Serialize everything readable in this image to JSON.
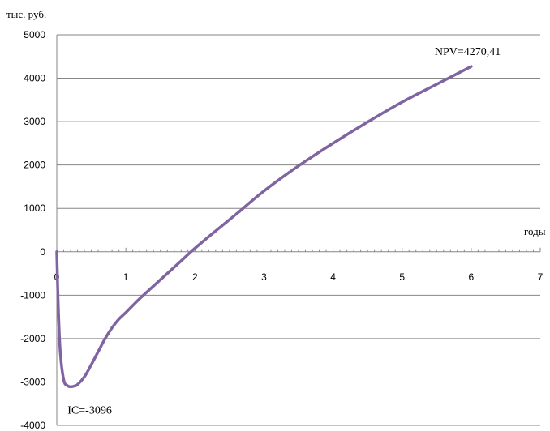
{
  "chart_data": {
    "type": "line",
    "ylabel": "тыс. руб.",
    "xlabel": "годы",
    "xlim": [
      0,
      7
    ],
    "ylim": [
      -4000,
      5000
    ],
    "x_ticks": [
      0,
      1,
      2,
      3,
      4,
      5,
      6,
      7
    ],
    "y_ticks": [
      -4000,
      -3000,
      -2000,
      -1000,
      0,
      1000,
      2000,
      3000,
      4000,
      5000
    ],
    "grid": true,
    "series": [
      {
        "color": "#8064a2",
        "x": [
          0,
          0.02,
          0.05,
          0.1,
          0.15,
          0.2,
          0.25,
          0.3,
          0.4,
          0.5,
          0.6,
          0.7,
          0.8,
          0.9,
          1.0,
          1.2,
          1.4,
          1.6,
          1.8,
          2.0,
          2.3,
          2.6,
          3.0,
          3.5,
          4.0,
          4.5,
          5.0,
          5.5,
          6.0
        ],
        "y": [
          0,
          -1200,
          -2300,
          -2950,
          -3080,
          -3110,
          -3096,
          -3060,
          -2880,
          -2600,
          -2300,
          -2000,
          -1750,
          -1550,
          -1400,
          -1080,
          -790,
          -500,
          -210,
          80,
          480,
          870,
          1400,
          1980,
          2500,
          2990,
          3450,
          3860,
          4270.41
        ]
      }
    ],
    "annotations": [
      {
        "text": "NPV=4270,41",
        "x": 6.0,
        "y": 4270.41
      },
      {
        "text": "IC=-3096",
        "x": 0.25,
        "y": -3096
      }
    ]
  }
}
